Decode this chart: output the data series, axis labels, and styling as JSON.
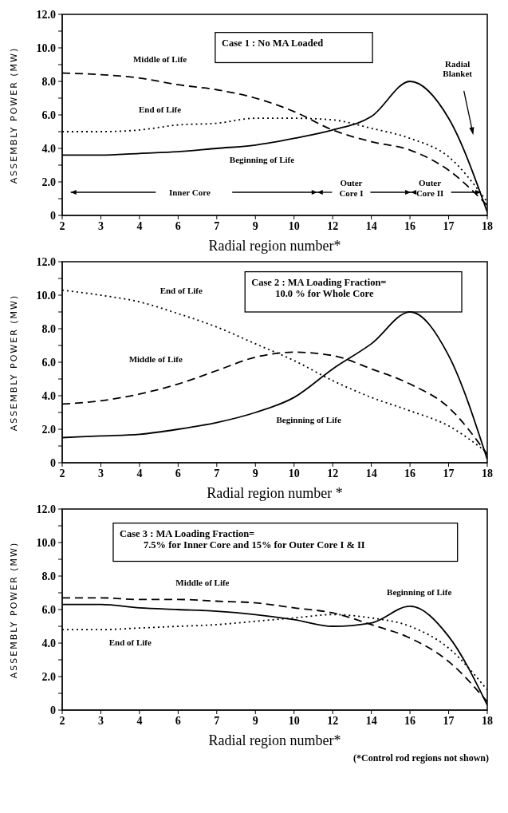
{
  "chart_data": [
    {
      "type": "line",
      "categories": [
        "2",
        "3",
        "4",
        "6",
        "7",
        "9",
        "10",
        "12",
        "14",
        "16",
        "17",
        "18"
      ],
      "xlabel": "Radial region number*",
      "ylabel": "ASSEMBLY POWER (MW)",
      "ylim": [
        0,
        12
      ],
      "yticks": [
        {
          "value": 0,
          "label": "0"
        },
        {
          "value": 1,
          "label": null
        },
        {
          "value": 2,
          "label": "2.0"
        },
        {
          "value": 3,
          "label": null
        },
        {
          "value": 4,
          "label": "4.0"
        },
        {
          "value": 5,
          "label": null
        },
        {
          "value": 6,
          "label": "6.0"
        },
        {
          "value": 7,
          "label": null
        },
        {
          "value": 8,
          "label": "8.0"
        },
        {
          "value": 9,
          "label": null
        },
        {
          "value": 10,
          "label": "10.0"
        },
        {
          "value": 11,
          "label": null
        },
        {
          "value": 12,
          "label": "12.0"
        }
      ],
      "grid": false,
      "legend": false,
      "marker": "none",
      "series": [
        {
          "name": "Beginning of Life",
          "color": "#000000",
          "line_style": "solid",
          "values": [
            3.6,
            3.6,
            3.7,
            3.8,
            4.0,
            4.2,
            4.6,
            5.1,
            5.9,
            8.0,
            5.8,
            0.2
          ]
        },
        {
          "name": "Middle of Life",
          "color": "#000000",
          "line_style": "dashed",
          "values": [
            8.5,
            8.4,
            8.2,
            7.8,
            7.5,
            7.0,
            6.2,
            5.1,
            4.4,
            3.9,
            2.7,
            0.6
          ]
        },
        {
          "name": "End of Life",
          "color": "#000000",
          "line_style": "dotted",
          "values": [
            5.0,
            5.0,
            5.1,
            5.4,
            5.5,
            5.8,
            5.8,
            5.7,
            5.2,
            4.6,
            3.5,
            0.8
          ]
        }
      ],
      "annotations": [
        "Case 1 : No MA Loaded",
        "Inner Core",
        "Outer\nCore I",
        "Outer\nCore II",
        "Radial\nBlanket"
      ]
    },
    {
      "type": "line",
      "categories": [
        "2",
        "3",
        "4",
        "6",
        "7",
        "9",
        "10",
        "12",
        "14",
        "16",
        "17",
        "18"
      ],
      "xlabel": "Radial region number *",
      "ylabel": "ASSEMBLY POWER (MW)",
      "ylim": [
        0,
        12
      ],
      "yticks": [
        {
          "value": 0,
          "label": "0"
        },
        {
          "value": 1,
          "label": null
        },
        {
          "value": 2,
          "label": "2.0"
        },
        {
          "value": 3,
          "label": null
        },
        {
          "value": 4,
          "label": "4.0"
        },
        {
          "value": 5,
          "label": null
        },
        {
          "value": 6,
          "label": "6.0"
        },
        {
          "value": 7,
          "label": null
        },
        {
          "value": 8,
          "label": "8.0"
        },
        {
          "value": 9,
          "label": null
        },
        {
          "value": 10,
          "label": "10.0"
        },
        {
          "value": 11,
          "label": null
        },
        {
          "value": 12,
          "label": "12.0"
        }
      ],
      "grid": false,
      "legend": false,
      "marker": "none",
      "series": [
        {
          "name": "Beginning of Life",
          "color": "#000000",
          "line_style": "solid",
          "values": [
            1.5,
            1.6,
            1.7,
            2.0,
            2.4,
            3.0,
            3.9,
            5.6,
            7.1,
            9.0,
            6.4,
            0.2
          ]
        },
        {
          "name": "Middle of Life",
          "color": "#000000",
          "line_style": "dashed",
          "values": [
            3.5,
            3.7,
            4.1,
            4.7,
            5.5,
            6.3,
            6.6,
            6.4,
            5.6,
            4.7,
            3.3,
            0.5
          ]
        },
        {
          "name": "End of Life",
          "color": "#000000",
          "line_style": "dotted",
          "values": [
            10.3,
            10.0,
            9.6,
            8.9,
            8.1,
            7.1,
            6.1,
            4.9,
            3.9,
            3.1,
            2.2,
            0.6
          ]
        }
      ],
      "annotations": [
        "Case 2 : MA Loading Fraction=\n10.0 % for Whole Core"
      ]
    },
    {
      "type": "line",
      "categories": [
        "2",
        "3",
        "4",
        "6",
        "7",
        "9",
        "10",
        "12",
        "14",
        "16",
        "17",
        "18"
      ],
      "xlabel": "Radial region number*",
      "ylabel": "ASSEMBLY POWER (MW)",
      "ylim": [
        0,
        12
      ],
      "yticks": [
        {
          "value": 0,
          "label": "0"
        },
        {
          "value": 1,
          "label": null
        },
        {
          "value": 2,
          "label": "2.0"
        },
        {
          "value": 3,
          "label": null
        },
        {
          "value": 4,
          "label": "4.0"
        },
        {
          "value": 5,
          "label": null
        },
        {
          "value": 6,
          "label": "6.0"
        },
        {
          "value": 7,
          "label": null
        },
        {
          "value": 8,
          "label": "8.0"
        },
        {
          "value": 9,
          "label": null
        },
        {
          "value": 10,
          "label": "10.0"
        },
        {
          "value": 11,
          "label": null
        },
        {
          "value": 12,
          "label": "12.0"
        }
      ],
      "grid": false,
      "legend": false,
      "marker": "none",
      "series": [
        {
          "name": "Beginning of Life",
          "color": "#000000",
          "line_style": "solid",
          "values": [
            6.3,
            6.3,
            6.1,
            6.0,
            5.9,
            5.7,
            5.4,
            5.0,
            5.2,
            6.2,
            4.4,
            0.3
          ]
        },
        {
          "name": "Middle of Life",
          "color": "#000000",
          "line_style": "dashed",
          "values": [
            6.7,
            6.7,
            6.6,
            6.6,
            6.5,
            6.4,
            6.1,
            5.8,
            5.1,
            4.3,
            2.9,
            0.5
          ]
        },
        {
          "name": "End of Life",
          "color": "#000000",
          "line_style": "dotted",
          "values": [
            4.8,
            4.8,
            4.9,
            5.0,
            5.1,
            5.3,
            5.5,
            5.7,
            5.5,
            5.0,
            3.7,
            1.2
          ]
        }
      ],
      "annotations": [
        "Case 3 : MA Loading Fraction=\n7.5% for Inner Core and 15% for Outer Core I & II",
        "(*Control rod regions not shown)"
      ]
    }
  ]
}
